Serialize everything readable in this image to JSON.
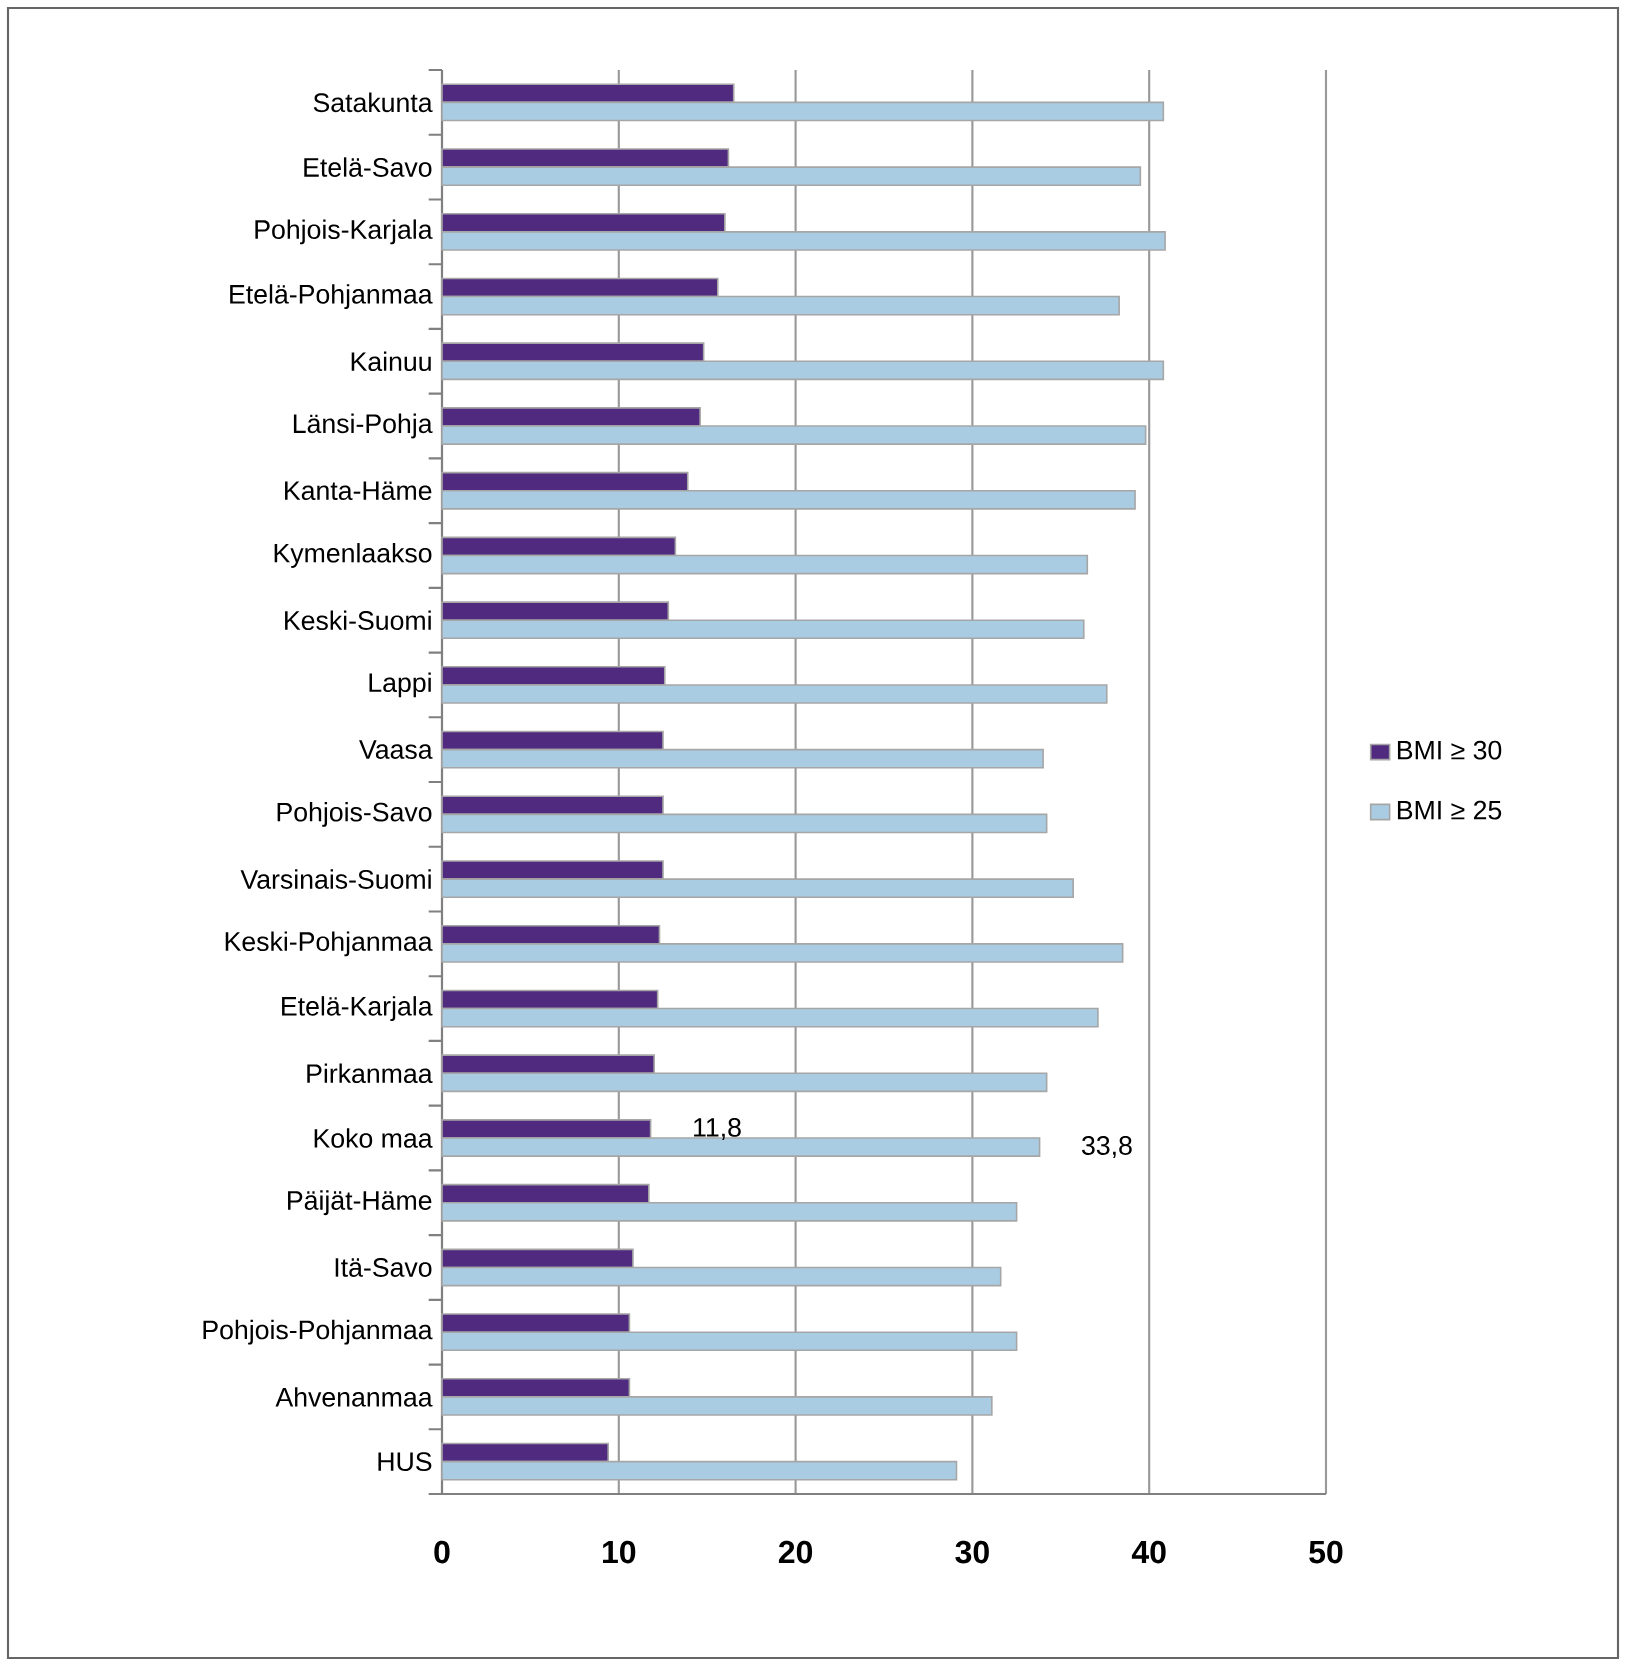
{
  "chart_data": {
    "type": "bar",
    "orientation": "horizontal",
    "categories": [
      "Satakunta",
      "Etelä-Savo",
      "Pohjois-Karjala",
      "Etelä-Pohjanmaa",
      "Kainuu",
      "Länsi-Pohja",
      "Kanta-Häme",
      "Kymenlaakso",
      "Keski-Suomi",
      "Lappi",
      "Vaasa",
      "Pohjois-Savo",
      "Varsinais-Suomi",
      "Keski-Pohjanmaa",
      "Etelä-Karjala",
      "Pirkanmaa",
      "Koko maa",
      "Päijät-Häme",
      "Itä-Savo",
      "Pohjois-Pohjanmaa",
      "Ahvenanmaa",
      "HUS"
    ],
    "series": [
      {
        "name": "BMI ≥ 30",
        "color": "#4f2a7f",
        "values": [
          16.5,
          16.2,
          16.0,
          15.6,
          14.8,
          14.6,
          13.9,
          13.2,
          12.8,
          12.6,
          12.5,
          12.5,
          12.5,
          12.3,
          12.2,
          12.0,
          11.8,
          11.7,
          10.8,
          10.6,
          10.6,
          9.4
        ],
        "value_labels": [
          null,
          null,
          null,
          null,
          null,
          null,
          null,
          null,
          null,
          null,
          null,
          null,
          null,
          null,
          null,
          null,
          "11,8",
          null,
          null,
          null,
          null,
          null
        ]
      },
      {
        "name": "BMI ≥ 25",
        "color": "#a9cce3",
        "values": [
          40.8,
          39.5,
          40.9,
          38.3,
          40.8,
          39.8,
          39.2,
          36.5,
          36.3,
          37.6,
          34.0,
          34.2,
          35.7,
          38.5,
          37.1,
          34.2,
          33.8,
          32.5,
          31.6,
          32.5,
          31.1,
          29.1
        ],
        "value_labels": [
          null,
          null,
          null,
          null,
          null,
          null,
          null,
          null,
          null,
          null,
          null,
          null,
          null,
          null,
          null,
          null,
          "33,8",
          null,
          null,
          null,
          null,
          null
        ]
      }
    ],
    "xlim": [
      0,
      50
    ],
    "xticks": [
      0,
      10,
      20,
      30,
      40,
      50
    ],
    "grid": "x",
    "legend": "right"
  }
}
